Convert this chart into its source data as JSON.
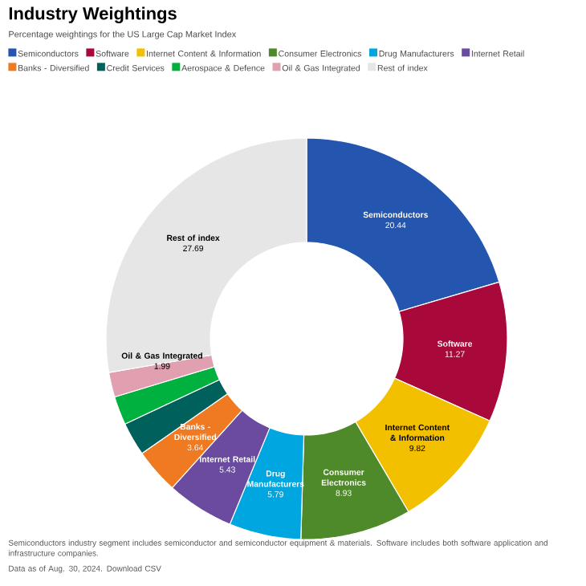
{
  "chart_data": {
    "type": "donut",
    "title": "Industry Weightings",
    "subtitle": "Percentage weightings for the US Large Cap Market Index",
    "categories": [
      "Semiconductors",
      "Software",
      "Internet Content & Information",
      "Consumer Electronics",
      "Drug Manufacturers",
      "Internet Retail",
      "Banks - Diversified",
      "Credit Services",
      "Aerospace & Defence",
      "Oil & Gas Integrated",
      "Rest of index"
    ],
    "values": [
      20.44,
      11.27,
      9.82,
      8.93,
      5.79,
      5.43,
      3.64,
      2.7,
      2.3,
      1.99,
      27.69
    ],
    "value_labels": [
      "20.44",
      "11.27",
      "9.82",
      "8.93",
      "5.79",
      "5.43",
      "3.64",
      null,
      null,
      "1.99",
      "27.69"
    ],
    "colors": [
      "#2456b0",
      "#a8083a",
      "#f3c000",
      "#4e8a2a",
      "#00a6e0",
      "#6a4ba0",
      "#f07a22",
      "#00605c",
      "#00b140",
      "#e0a0b0",
      "#e6e6e6"
    ],
    "legend": "top",
    "annotations": [
      "Semiconductors industry segment includes semiconductor and semiconductor equipment & materials. Software includes both software application and infrastructure companies.",
      "Data as of Aug. 30, 2024. Download CSV"
    ]
  }
}
